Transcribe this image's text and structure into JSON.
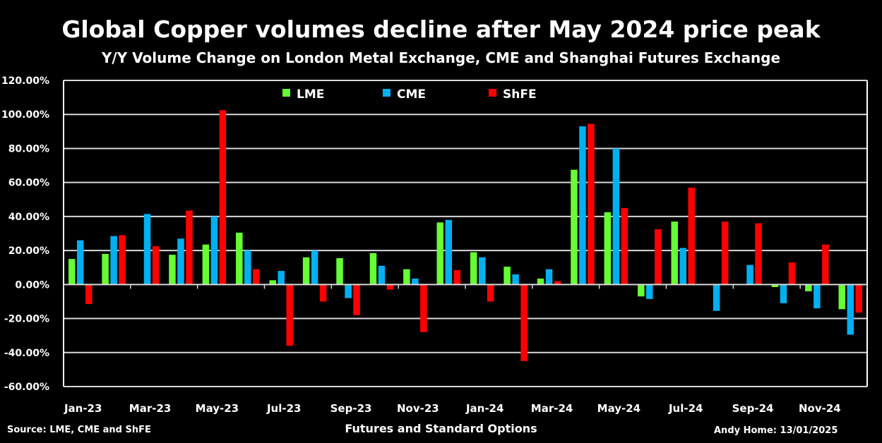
{
  "chart_data": {
    "type": "bar",
    "title": "Global Copper volumes decline after May 2024 price peak",
    "subtitle": "Y/Y Volume Change on London Metal Exchange, CME and Shanghai Futures Exchange",
    "xlabel": "Futures and Standard Options",
    "ylabel": "",
    "ylim": [
      -60,
      120
    ],
    "yticks": [
      "120.00%",
      "100.00%",
      "80.00%",
      "60.00%",
      "40.00%",
      "20.00%",
      "0.00%",
      "-20.00%",
      "-40.00%",
      "-60.00%"
    ],
    "grid": true,
    "legend_position": "top",
    "categories": [
      "Jan-23",
      "Feb-23",
      "Mar-23",
      "Apr-23",
      "May-23",
      "Jun-23",
      "Jul-23",
      "Aug-23",
      "Sep-23",
      "Oct-23",
      "Nov-23",
      "Dec-23",
      "Jan-24",
      "Feb-24",
      "Mar-24",
      "Apr-24",
      "May-24",
      "Jun-24",
      "Jul-24",
      "Aug-24",
      "Sep-24",
      "Oct-24",
      "Nov-24",
      "Dec-24"
    ],
    "xtick_labels": [
      "Jan-23",
      "Mar-23",
      "May-23",
      "Jul-23",
      "Sep-23",
      "Nov-23",
      "Jan-24",
      "Mar-24",
      "May-24",
      "Jul-24",
      "Sep-24",
      "Nov-24"
    ],
    "series": [
      {
        "name": "LME",
        "color": "#66FF33",
        "values": [
          15,
          18,
          null,
          17.5,
          23.5,
          30.5,
          2.5,
          16,
          15.5,
          18.5,
          9,
          36.5,
          19,
          10.5,
          3.5,
          67.5,
          42.5,
          -7,
          37,
          null,
          null,
          -1.5,
          -4,
          -14.5
        ]
      },
      {
        "name": "CME",
        "color": "#00B0F0",
        "values": [
          26,
          28.5,
          41.5,
          27,
          40,
          20,
          8,
          20,
          -8,
          11,
          3.5,
          38,
          16,
          6,
          9,
          93,
          80,
          -8.5,
          21.5,
          -15.5,
          11.5,
          -11,
          -14,
          -29.5
        ]
      },
      {
        "name": "ShFE",
        "color": "#FF0000",
        "values": [
          -11.5,
          29,
          22.5,
          43.5,
          102.5,
          9,
          -36,
          -10,
          -18,
          -3,
          -28,
          8.5,
          -10,
          -45,
          2,
          94.5,
          45,
          32.5,
          57,
          37,
          36,
          13,
          23.5,
          -16.5
        ]
      }
    ]
  },
  "footer": {
    "source": "Source: LME, CME and ShFE",
    "author": "Andy Home: 13/01/2025"
  }
}
